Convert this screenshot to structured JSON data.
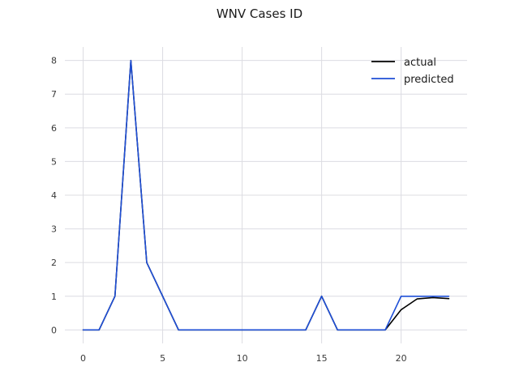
{
  "chart_data": {
    "type": "line",
    "title": "WNV Cases ID",
    "xlabel": "",
    "ylabel": "",
    "x": [
      0,
      1,
      2,
      3,
      4,
      5,
      6,
      7,
      8,
      9,
      10,
      11,
      12,
      13,
      14,
      15,
      16,
      17,
      18,
      19,
      20,
      21,
      22,
      23
    ],
    "xlim": [
      -1.15,
      24.15
    ],
    "ylim": [
      -0.4,
      8.4
    ],
    "xticks": [
      0,
      5,
      10,
      15,
      20
    ],
    "yticks": [
      0,
      1,
      2,
      3,
      4,
      5,
      6,
      7,
      8
    ],
    "xtick_labels": [
      "0",
      "5",
      "10",
      "15",
      "20"
    ],
    "ytick_labels": [
      "0",
      "1",
      "2",
      "3",
      "4",
      "5",
      "6",
      "7",
      "8"
    ],
    "grid": true,
    "legend_position": "top-right",
    "series": [
      {
        "name": "actual",
        "color": "#000000",
        "values": [
          0,
          0,
          1,
          8,
          2,
          1,
          0,
          0,
          0,
          0,
          0,
          0,
          0,
          0,
          0,
          1,
          0,
          0,
          0,
          0,
          0.6,
          0.92,
          0.96,
          0.93
        ]
      },
      {
        "name": "predicted",
        "color": "#1f4fd6",
        "values": [
          0,
          0,
          1,
          8,
          2,
          1,
          0,
          0,
          0,
          0,
          0,
          0,
          0,
          0,
          0,
          1,
          0,
          0,
          0,
          0,
          1,
          1,
          1,
          1
        ]
      }
    ]
  }
}
